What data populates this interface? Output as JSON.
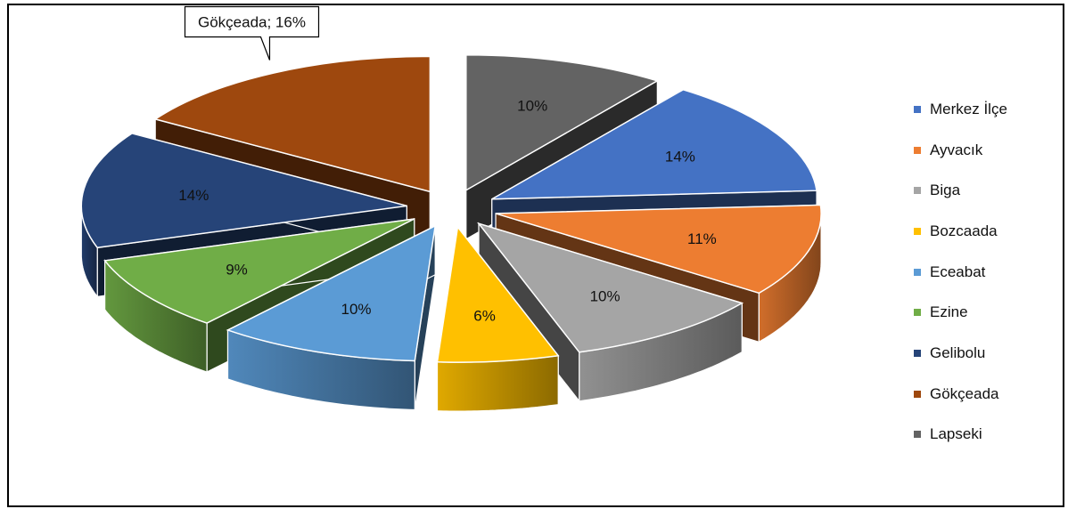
{
  "chart_data": {
    "type": "pie",
    "categories": [
      "Merkez İlçe",
      "Ayvacık",
      "Biga",
      "Bozcaada",
      "Eceabat",
      "Ezine",
      "Gelibolu",
      "Gökçeada",
      "Lapseki"
    ],
    "values": [
      14,
      11,
      10,
      6,
      10,
      9,
      14,
      16,
      10
    ],
    "data_labels": [
      "14%",
      "11%",
      "10%",
      "6%",
      "10%",
      "9%",
      "14%",
      "Gökçeada; 16%",
      "10%"
    ],
    "colors": [
      "#4472C4",
      "#ED7D31",
      "#A5A5A5",
      "#FFC000",
      "#5B9BD5",
      "#70AD47",
      "#264478",
      "#9E480E",
      "#636363"
    ],
    "legend_position": "right",
    "exploded": true,
    "three_d": true
  }
}
